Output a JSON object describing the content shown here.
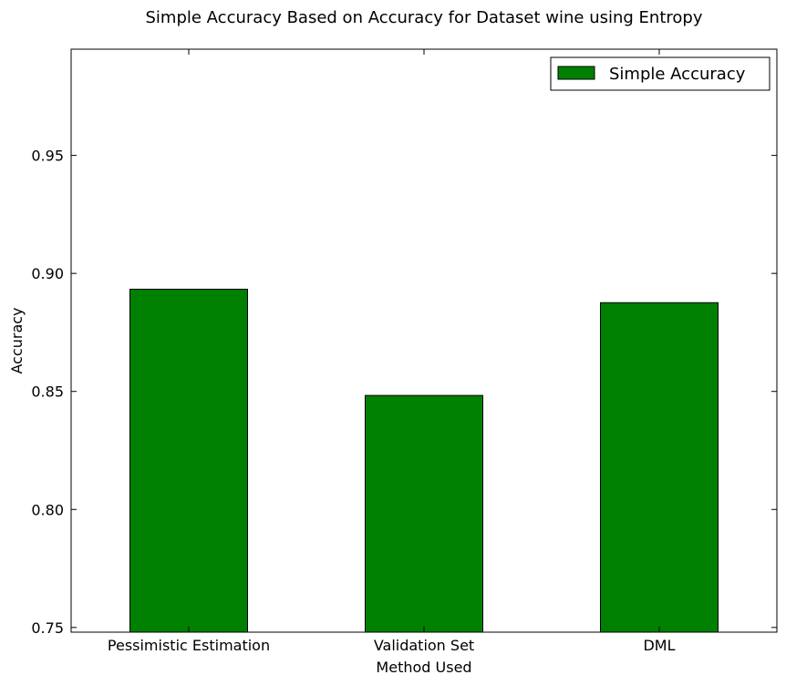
{
  "chart_data": {
    "type": "bar",
    "title": "Simple Accuracy Based on Accuracy for Dataset wine using Entropy",
    "xlabel": "Method Used",
    "ylabel": "Accuracy",
    "categories": [
      "Pessimistic Estimation",
      "Validation Set",
      "DML"
    ],
    "series": [
      {
        "name": "Simple Accuracy",
        "values": [
          0.8933,
          0.8483,
          0.8876
        ],
        "color": "#008000"
      }
    ],
    "ylim": [
      0.748,
      0.995
    ],
    "yticks": [
      0.75,
      0.8,
      0.85,
      0.9,
      0.95
    ],
    "ytick_labels": [
      "0.75",
      "0.80",
      "0.85",
      "0.90",
      "0.95"
    ],
    "grid": false,
    "legend_position": "top-right"
  }
}
